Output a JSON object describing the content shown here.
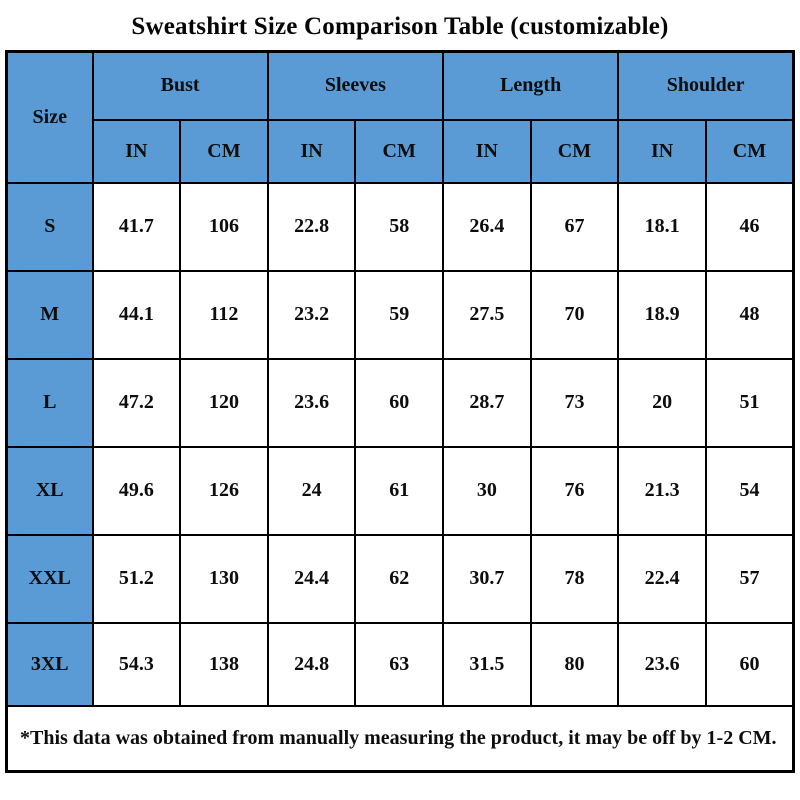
{
  "title": "Sweatshirt Size Comparison Table (customizable)",
  "colors": {
    "header_blue": "#5B9BD5",
    "border_black": "#000000",
    "text_dark": "#0d0d0d",
    "cell_white": "#ffffff"
  },
  "table": {
    "size_header": "Size",
    "groups": [
      {
        "label": "Bust"
      },
      {
        "label": "Sleeves"
      },
      {
        "label": "Length"
      },
      {
        "label": "Shoulder"
      }
    ],
    "unit_headers": [
      "IN",
      "CM"
    ],
    "rows": [
      {
        "size": "S",
        "values": [
          "41.7",
          "106",
          "22.8",
          "58",
          "26.4",
          "67",
          "18.1",
          "46"
        ]
      },
      {
        "size": "M",
        "values": [
          "44.1",
          "112",
          "23.2",
          "59",
          "27.5",
          "70",
          "18.9",
          "48"
        ]
      },
      {
        "size": "L",
        "values": [
          "47.2",
          "120",
          "23.6",
          "60",
          "28.7",
          "73",
          "20",
          "51"
        ]
      },
      {
        "size": "XL",
        "values": [
          "49.6",
          "126",
          "24",
          "61",
          "30",
          "76",
          "21.3",
          "54"
        ]
      },
      {
        "size": "XXL",
        "values": [
          "51.2",
          "130",
          "24.4",
          "62",
          "30.7",
          "78",
          "22.4",
          "57"
        ]
      },
      {
        "size": "3XL",
        "values": [
          "54.3",
          "138",
          "24.8",
          "63",
          "31.5",
          "80",
          "23.6",
          "60"
        ]
      }
    ],
    "footnote": "*This data was obtained from manually measuring the product, it may be off by 1-2 CM."
  },
  "chart_data": {
    "type": "table",
    "title": "Sweatshirt Size Comparison Table (customizable)",
    "columns": [
      "Size",
      "Bust IN",
      "Bust CM",
      "Sleeves IN",
      "Sleeves CM",
      "Length IN",
      "Length CM",
      "Shoulder IN",
      "Shoulder CM"
    ],
    "rows": [
      [
        "S",
        41.7,
        106,
        22.8,
        58,
        26.4,
        67,
        18.1,
        46
      ],
      [
        "M",
        44.1,
        112,
        23.2,
        59,
        27.5,
        70,
        18.9,
        48
      ],
      [
        "L",
        47.2,
        120,
        23.6,
        60,
        28.7,
        73,
        20,
        51
      ],
      [
        "XL",
        49.6,
        126,
        24,
        61,
        30,
        76,
        21.3,
        54
      ],
      [
        "XXL",
        51.2,
        130,
        24.4,
        62,
        30.7,
        78,
        22.4,
        57
      ],
      [
        "3XL",
        54.3,
        138,
        24.8,
        63,
        31.5,
        80,
        23.6,
        60
      ]
    ],
    "footnote": "*This data was obtained from manually measuring the product, it may be off by 1-2 CM."
  }
}
